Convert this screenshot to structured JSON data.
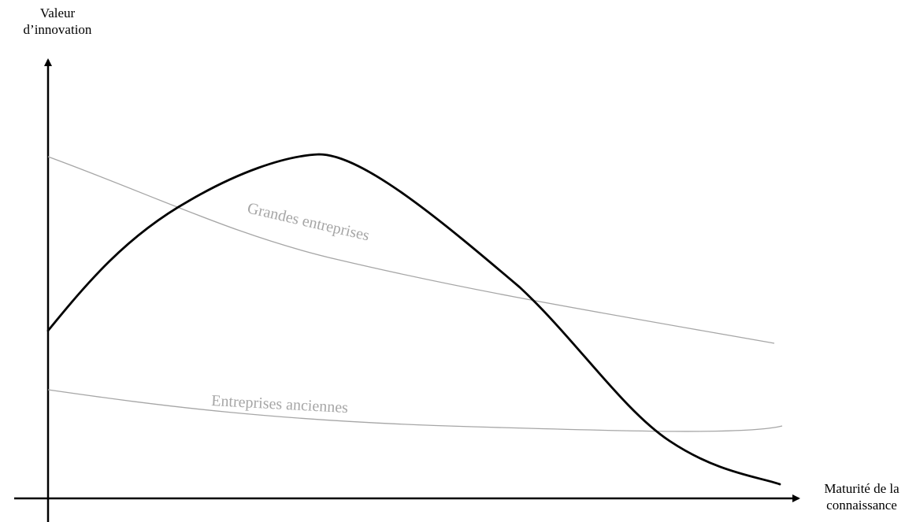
{
  "diagram": {
    "y_axis_label_line1": "Valeur",
    "y_axis_label_line2": "d’innovation",
    "x_axis_label_line1": "Maturité de la",
    "x_axis_label_line2": "connaissance",
    "curves": [
      {
        "label": "",
        "color": "#000000"
      },
      {
        "label": "Grandes entreprises",
        "color": "#a6a6a6"
      },
      {
        "label": "Entreprises anciennes",
        "color": "#a6a6a6"
      }
    ]
  }
}
